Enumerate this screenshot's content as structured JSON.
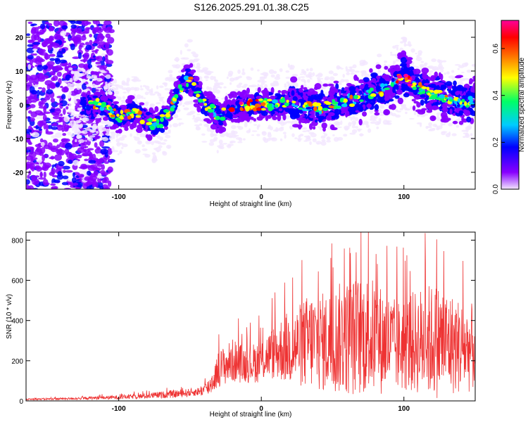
{
  "title": "S126.2025.291.01.38.C25",
  "chart_data": [
    {
      "type": "heatmap",
      "xlabel": "Height of straight line (km)",
      "ylabel": "Frequency (Hz)",
      "xlim": [
        -165,
        150
      ],
      "ylim": [
        -25,
        25
      ],
      "x_ticks": [
        -100,
        0,
        100
      ],
      "x_tick_labels": [
        "-100",
        "0",
        "100"
      ],
      "y_ticks": [
        -20,
        -10,
        0,
        10,
        20
      ],
      "y_tick_labels": [
        "-20",
        "-10",
        "0",
        "10",
        "20"
      ],
      "ridge": {
        "x": [
          -120,
          -110,
          -100,
          -90,
          -80,
          -75,
          -70,
          -65,
          -60,
          -55,
          -50,
          -45,
          -40,
          -35,
          -30,
          -25,
          -20,
          -10,
          0,
          10,
          20,
          30,
          40,
          50,
          60,
          70,
          80,
          90,
          100,
          110,
          120,
          130,
          145
        ],
        "frequency": [
          0,
          0,
          -4,
          -2,
          -5,
          -6,
          -5,
          -2,
          2,
          6,
          8,
          4,
          0,
          -1,
          -4,
          -2,
          -1,
          0,
          0,
          0,
          1,
          0,
          -1,
          0,
          1,
          2,
          4,
          5,
          9,
          5,
          3,
          2,
          1
        ]
      },
      "colorbar": {
        "label": "Normalized spectral amplitude",
        "range": [
          0,
          0.72
        ],
        "ticks": [
          0.0,
          0.2,
          0.4,
          0.6
        ],
        "tick_labels": [
          "0.0",
          "0.2",
          "0.4",
          "0.6"
        ],
        "colors": [
          "#f2e6ff",
          "#8800ff",
          "#0000ff",
          "#00ccff",
          "#00ff66",
          "#ffff00",
          "#ff6600",
          "#ff0000",
          "#ff0099"
        ]
      }
    },
    {
      "type": "line",
      "xlabel": "Height of straight line (km)",
      "ylabel": "SNR (10 * v/v)",
      "xlim": [
        -165,
        150
      ],
      "ylim": [
        0,
        840
      ],
      "x_ticks": [
        -100,
        0,
        100
      ],
      "x_tick_labels": [
        "-100",
        "0",
        "100"
      ],
      "y_ticks": [
        0,
        200,
        400,
        600,
        800
      ],
      "y_tick_labels": [
        "0",
        "200",
        "400",
        "600",
        "800"
      ],
      "color": "#ee3333",
      "envelope": {
        "x": [
          -165,
          -130,
          -100,
          -80,
          -60,
          -45,
          -38,
          -34,
          -30,
          -20,
          -10,
          0,
          5,
          10,
          15,
          25,
          35,
          45,
          55,
          65,
          75,
          85,
          95,
          105,
          115,
          125,
          135,
          145,
          150
        ],
        "mean": [
          8,
          12,
          18,
          25,
          35,
          45,
          60,
          100,
          160,
          200,
          180,
          200,
          230,
          240,
          260,
          270,
          300,
          290,
          310,
          320,
          330,
          300,
          270,
          290,
          300,
          300,
          280,
          260,
          270
        ],
        "amp": [
          4,
          6,
          10,
          14,
          20,
          20,
          40,
          60,
          90,
          110,
          90,
          110,
          120,
          140,
          170,
          200,
          250,
          250,
          280,
          300,
          300,
          270,
          230,
          250,
          280,
          290,
          250,
          220,
          220
        ]
      }
    }
  ]
}
